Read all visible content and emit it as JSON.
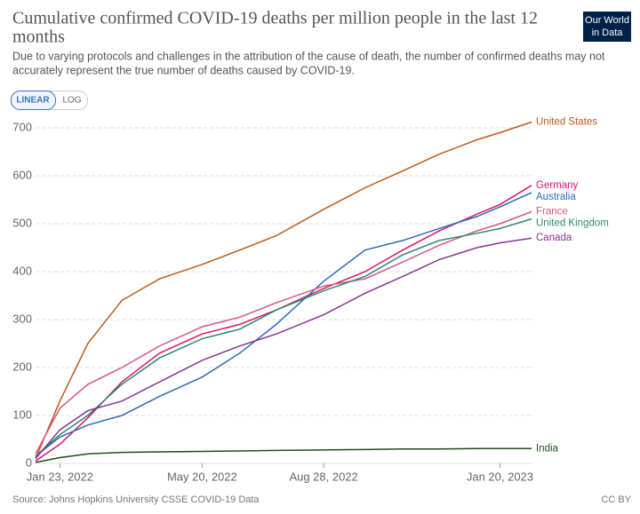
{
  "header": {
    "title_lines": [
      "Cumulative confirmed COVID-19 deaths per million people in the last 12",
      "months"
    ],
    "subtitle_lines": [
      "Due to varying protocols and challenges in the attribution of the cause of death, the number of confirmed deaths may not",
      "accurately represent the true number of deaths caused by COVID-19."
    ],
    "logo_lines": [
      "Our World",
      "in Data"
    ]
  },
  "controls": [
    "LINEAR",
    "LOG"
  ],
  "footer": {
    "source": "Source: Johns Hopkins University CSSE COVID-19 Data",
    "license": "CC BY"
  },
  "chart_data": {
    "type": "line",
    "x": [
      "2022-01-03",
      "2022-01-23",
      "2022-02-15",
      "2022-03-15",
      "2022-04-15",
      "2022-05-20",
      "2022-06-20",
      "2022-07-20",
      "2022-08-28",
      "2022-10-01",
      "2022-11-01",
      "2022-12-01",
      "2023-01-01",
      "2023-01-20",
      "2023-02-15"
    ],
    "xlim": [
      "2022-01-03",
      "2023-02-15"
    ],
    "xticks": [
      {
        "value": "2022-01-23",
        "label": "Jan 23, 2022"
      },
      {
        "value": "2022-05-20",
        "label": "May 20, 2022"
      },
      {
        "value": "2022-08-28",
        "label": "Aug 28, 2022"
      },
      {
        "value": "2023-01-20",
        "label": "Jan 20, 2023"
      }
    ],
    "ylim": [
      0,
      700
    ],
    "yticks": [
      0,
      100,
      200,
      300,
      400,
      500,
      600,
      700
    ],
    "grid": true,
    "series": [
      {
        "name": "United States",
        "color": "#c05917",
        "values": [
          10,
          130,
          250,
          340,
          385,
          415,
          445,
          475,
          530,
          575,
          610,
          645,
          675,
          690,
          712
        ]
      },
      {
        "name": "Germany",
        "color": "#d4176f",
        "values": [
          5,
          40,
          95,
          170,
          230,
          270,
          290,
          320,
          365,
          400,
          445,
          485,
          520,
          540,
          580
        ]
      },
      {
        "name": "Australia",
        "color": "#2c6bb5",
        "values": [
          15,
          55,
          80,
          100,
          140,
          180,
          230,
          290,
          380,
          445,
          465,
          490,
          515,
          535,
          565
        ]
      },
      {
        "name": "France",
        "color": "#d6597a",
        "values": [
          20,
          115,
          165,
          200,
          245,
          285,
          305,
          335,
          370,
          385,
          420,
          455,
          485,
          500,
          525
        ]
      },
      {
        "name": "United Kingdom",
        "color": "#2d8a6b",
        "values": [
          15,
          60,
          100,
          165,
          220,
          260,
          280,
          320,
          360,
          390,
          435,
          465,
          480,
          490,
          510
        ]
      },
      {
        "name": "Canada",
        "color": "#883597",
        "values": [
          10,
          70,
          110,
          130,
          170,
          215,
          245,
          270,
          310,
          355,
          390,
          425,
          450,
          460,
          470
        ]
      },
      {
        "name": "India",
        "color": "#1e4d1a",
        "values": [
          2,
          12,
          20,
          23,
          24,
          25,
          26,
          27,
          28,
          29,
          30,
          30,
          31,
          31,
          31
        ]
      }
    ]
  }
}
